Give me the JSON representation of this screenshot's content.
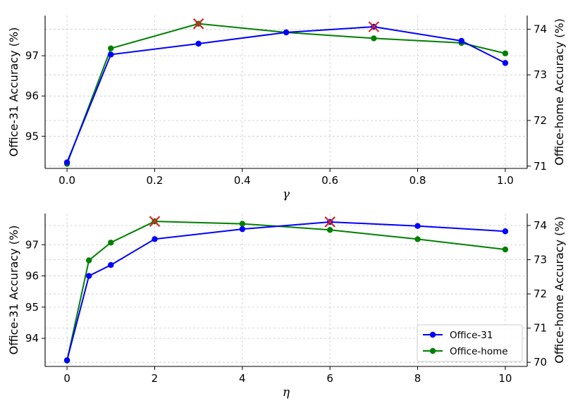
{
  "chart_data": [
    {
      "type": "line",
      "xlabel": "γ",
      "ylabel_left": "Office-31 Accuracy (%)",
      "ylabel_right": "Office-home Accuracy (%)",
      "x": [
        0.0,
        0.1,
        0.3,
        0.5,
        0.7,
        0.9,
        1.0
      ],
      "xticks": [
        "0.0",
        "0.2",
        "0.4",
        "0.6",
        "0.8",
        "1.0"
      ],
      "xtick_values": [
        0.0,
        0.2,
        0.4,
        0.6,
        0.8,
        1.0
      ],
      "xlim": [
        -0.05,
        1.05
      ],
      "ylim_left": [
        94.2,
        98.0
      ],
      "yticks_left": [
        "95",
        "96",
        "97"
      ],
      "ytick_values_left": [
        95,
        96,
        97
      ],
      "ylim_right": [
        70.95,
        74.3
      ],
      "yticks_right": [
        "71",
        "72",
        "73",
        "74"
      ],
      "ytick_values_right": [
        71,
        72,
        73,
        74
      ],
      "grid": true,
      "series": [
        {
          "name": "Office-31",
          "axis": "left",
          "color": "#0000ff",
          "values": [
            94.35,
            97.03,
            97.3,
            97.58,
            97.72,
            97.37,
            96.82
          ],
          "best_index": 4
        },
        {
          "name": "Office-home",
          "axis": "right",
          "color": "#008000",
          "values": [
            71.05,
            73.58,
            74.12,
            73.93,
            73.8,
            73.7,
            73.47
          ],
          "best_index": 2
        }
      ],
      "best_marker_color": "#d62728"
    },
    {
      "type": "line",
      "xlabel": "η",
      "ylabel_left": "Office-31 Accuracy (%)",
      "ylabel_right": "Office-home Accuracy (%)",
      "x": [
        0,
        0.5,
        1,
        2,
        4,
        6,
        8,
        10
      ],
      "xticks": [
        "0",
        "2",
        "4",
        "6",
        "8",
        "10"
      ],
      "xtick_values": [
        0,
        2,
        4,
        6,
        8,
        10
      ],
      "xlim": [
        -0.5,
        10.5
      ],
      "ylim_left": [
        93.1,
        98.0
      ],
      "yticks_left": [
        "94",
        "95",
        "96",
        "97"
      ],
      "ytick_values_left": [
        94,
        95,
        96,
        97
      ],
      "ylim_right": [
        69.88,
        74.35
      ],
      "yticks_right": [
        "70",
        "71",
        "72",
        "73",
        "74"
      ],
      "ytick_values_right": [
        70,
        71,
        72,
        73,
        74
      ],
      "grid": true,
      "legend": {
        "placement": "lower-right",
        "entries": [
          "Office-31",
          "Office-home"
        ]
      },
      "series": [
        {
          "name": "Office-31",
          "axis": "left",
          "color": "#0000ff",
          "values": [
            93.3,
            96.0,
            96.35,
            97.18,
            97.5,
            97.73,
            97.6,
            97.43
          ],
          "best_index": 5
        },
        {
          "name": "Office-home",
          "axis": "right",
          "color": "#008000",
          "values": [
            70.05,
            72.98,
            73.5,
            74.12,
            74.05,
            73.87,
            73.6,
            73.3
          ],
          "best_index": 3
        }
      ],
      "best_marker_color": "#d62728"
    }
  ]
}
